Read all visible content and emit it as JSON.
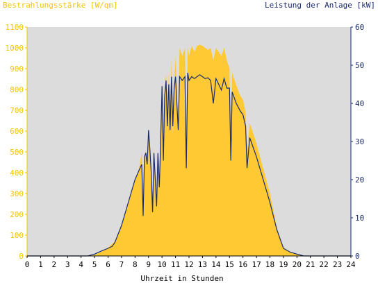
{
  "chart_data": {
    "type": "area",
    "title_left": "Bestrahlungsstärke [W/qm]",
    "title_right": "Leistung der Anlage [kW]",
    "xlabel": "Uhrzeit in Stunden",
    "xlim": [
      0,
      24
    ],
    "ylim_left": [
      0,
      1100
    ],
    "ylim_right": [
      0,
      60
    ],
    "x_ticks": [
      "0",
      "1",
      "2",
      "3",
      "4",
      "5",
      "6",
      "7",
      "8",
      "9",
      "10",
      "11",
      "12",
      "13",
      "14",
      "15",
      "16",
      "17",
      "18",
      "19",
      "20",
      "21",
      "22",
      "23",
      "24"
    ],
    "y_ticks_left": [
      "0",
      "100",
      "200",
      "300",
      "400",
      "500",
      "600",
      "700",
      "800",
      "900",
      "1000",
      "1100"
    ],
    "y_ticks_right": [
      "0",
      "10",
      "20",
      "30",
      "40",
      "50",
      "60"
    ],
    "colors": {
      "irradiance": "#ffc933",
      "power": "#1a2a6c",
      "plot_bg": "#dcdcdc",
      "left_axis": "#f5c400",
      "right_axis": "#1a2a6c"
    },
    "series": [
      {
        "name": "Bestrahlungsstärke",
        "axis": "left",
        "style": "area",
        "points": [
          [
            0,
            0
          ],
          [
            4.5,
            0
          ],
          [
            5,
            5
          ],
          [
            5.5,
            20
          ],
          [
            6,
            40
          ],
          [
            6.5,
            70
          ],
          [
            7,
            150
          ],
          [
            7.5,
            260
          ],
          [
            8,
            360
          ],
          [
            8.3,
            420
          ],
          [
            8.5,
            500
          ],
          [
            8.6,
            220
          ],
          [
            8.7,
            480
          ],
          [
            8.8,
            510
          ],
          [
            8.9,
            440
          ],
          [
            9,
            600
          ],
          [
            9.1,
            520
          ],
          [
            9.2,
            420
          ],
          [
            9.3,
            280
          ],
          [
            9.4,
            520
          ],
          [
            9.5,
            380
          ],
          [
            9.6,
            250
          ],
          [
            9.7,
            500
          ],
          [
            9.8,
            330
          ],
          [
            9.9,
            550
          ],
          [
            10,
            860
          ],
          [
            10.1,
            460
          ],
          [
            10.2,
            780
          ],
          [
            10.3,
            880
          ],
          [
            10.4,
            600
          ],
          [
            10.5,
            890
          ],
          [
            10.6,
            620
          ],
          [
            10.7,
            950
          ],
          [
            10.8,
            580
          ],
          [
            10.9,
            800
          ],
          [
            11,
            960
          ],
          [
            11.2,
            620
          ],
          [
            11.3,
            1000
          ],
          [
            11.5,
            960
          ],
          [
            11.7,
            1000
          ],
          [
            11.8,
            450
          ],
          [
            11.9,
            1000
          ],
          [
            12,
            960
          ],
          [
            12.2,
            1010
          ],
          [
            12.4,
            980
          ],
          [
            12.6,
            1010
          ],
          [
            12.8,
            1015
          ],
          [
            13,
            1010
          ],
          [
            13.2,
            1000
          ],
          [
            13.4,
            990
          ],
          [
            13.6,
            1000
          ],
          [
            13.8,
            940
          ],
          [
            14,
            1000
          ],
          [
            14.2,
            980
          ],
          [
            14.4,
            960
          ],
          [
            14.6,
            1000
          ],
          [
            14.8,
            940
          ],
          [
            15,
            900
          ],
          [
            15.1,
            500
          ],
          [
            15.2,
            880
          ],
          [
            15.5,
            820
          ],
          [
            15.8,
            770
          ],
          [
            16,
            750
          ],
          [
            16.2,
            690
          ],
          [
            16.3,
            500
          ],
          [
            16.5,
            640
          ],
          [
            17,
            540
          ],
          [
            17.5,
            420
          ],
          [
            18,
            300
          ],
          [
            18.5,
            140
          ],
          [
            19,
            40
          ],
          [
            19.5,
            20
          ],
          [
            20,
            10
          ],
          [
            20.5,
            0
          ],
          [
            24,
            0
          ]
        ]
      },
      {
        "name": "Leistung",
        "axis": "right",
        "style": "line",
        "points": [
          [
            0,
            0
          ],
          [
            4.5,
            0
          ],
          [
            5,
            0.5
          ],
          [
            5.5,
            1.3
          ],
          [
            6,
            2
          ],
          [
            6.3,
            2.5
          ],
          [
            6.5,
            3.5
          ],
          [
            7,
            8
          ],
          [
            7.5,
            14
          ],
          [
            8,
            20
          ],
          [
            8.3,
            22.5
          ],
          [
            8.5,
            24
          ],
          [
            8.6,
            10.5
          ],
          [
            8.7,
            26
          ],
          [
            8.8,
            27
          ],
          [
            8.9,
            24
          ],
          [
            9,
            33
          ],
          [
            9.1,
            28
          ],
          [
            9.2,
            22
          ],
          [
            9.3,
            11.5
          ],
          [
            9.4,
            27
          ],
          [
            9.5,
            20
          ],
          [
            9.6,
            13
          ],
          [
            9.7,
            27
          ],
          [
            9.8,
            18
          ],
          [
            9.9,
            30
          ],
          [
            10,
            44.5
          ],
          [
            10.1,
            25
          ],
          [
            10.2,
            42
          ],
          [
            10.3,
            46
          ],
          [
            10.4,
            34
          ],
          [
            10.5,
            45
          ],
          [
            10.6,
            33
          ],
          [
            10.7,
            47
          ],
          [
            10.8,
            34
          ],
          [
            10.9,
            44
          ],
          [
            11,
            47
          ],
          [
            11.2,
            33
          ],
          [
            11.3,
            47
          ],
          [
            11.5,
            46
          ],
          [
            11.7,
            47
          ],
          [
            11.8,
            23
          ],
          [
            11.9,
            48
          ],
          [
            12,
            46
          ],
          [
            12.2,
            47
          ],
          [
            12.4,
            46.5
          ],
          [
            12.6,
            47
          ],
          [
            12.8,
            47.5
          ],
          [
            13,
            47
          ],
          [
            13.2,
            46.5
          ],
          [
            13.4,
            46.7
          ],
          [
            13.6,
            46
          ],
          [
            13.8,
            40
          ],
          [
            14,
            46.5
          ],
          [
            14.2,
            45
          ],
          [
            14.4,
            43.5
          ],
          [
            14.6,
            46.5
          ],
          [
            14.8,
            44
          ],
          [
            15,
            44
          ],
          [
            15.1,
            25
          ],
          [
            15.2,
            43
          ],
          [
            15.5,
            40
          ],
          [
            15.8,
            38
          ],
          [
            16,
            37
          ],
          [
            16.2,
            34
          ],
          [
            16.3,
            23
          ],
          [
            16.5,
            31
          ],
          [
            17,
            26
          ],
          [
            17.5,
            20
          ],
          [
            18,
            14
          ],
          [
            18.5,
            7
          ],
          [
            19,
            2
          ],
          [
            19.5,
            1
          ],
          [
            20,
            0.5
          ],
          [
            20.5,
            0
          ],
          [
            24,
            0
          ]
        ]
      }
    ]
  }
}
